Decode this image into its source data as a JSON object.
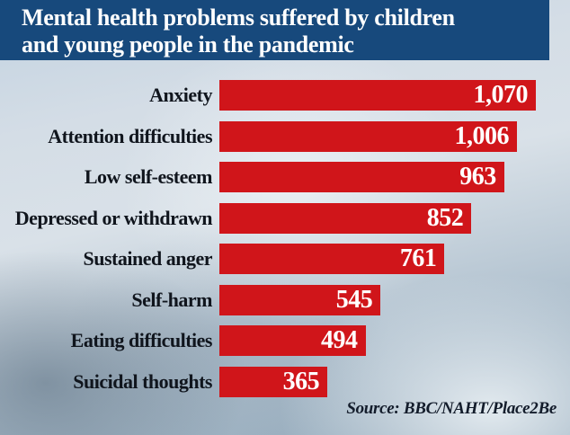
{
  "header": {
    "title_line1": "Mental health problems suffered by children",
    "title_line2": "and young people in the pandemic",
    "bg_color": "#17497c",
    "text_color": "#ffffff"
  },
  "chart_data": {
    "type": "bar",
    "orientation": "horizontal",
    "title": "Mental health problems suffered by children and young people in the pandemic",
    "categories": [
      "Anxiety",
      "Attention difficulties",
      "Low self-esteem",
      "Depressed or withdrawn",
      "Sustained anger",
      "Self-harm",
      "Eating difficulties",
      "Suicidal thoughts"
    ],
    "values": [
      1070,
      1006,
      963,
      852,
      761,
      545,
      494,
      365
    ],
    "value_labels": [
      "1,070",
      "1,006",
      "963",
      "852",
      "761",
      "545",
      "494",
      "365"
    ],
    "xlim": [
      0,
      1070
    ],
    "grid": false,
    "legend_position": "none",
    "bar_color": "#d0151a",
    "category_label_color": "#10151d",
    "value_text_color": "#ffffff",
    "source": "Source: BBC/NAHT/Place2Be"
  }
}
